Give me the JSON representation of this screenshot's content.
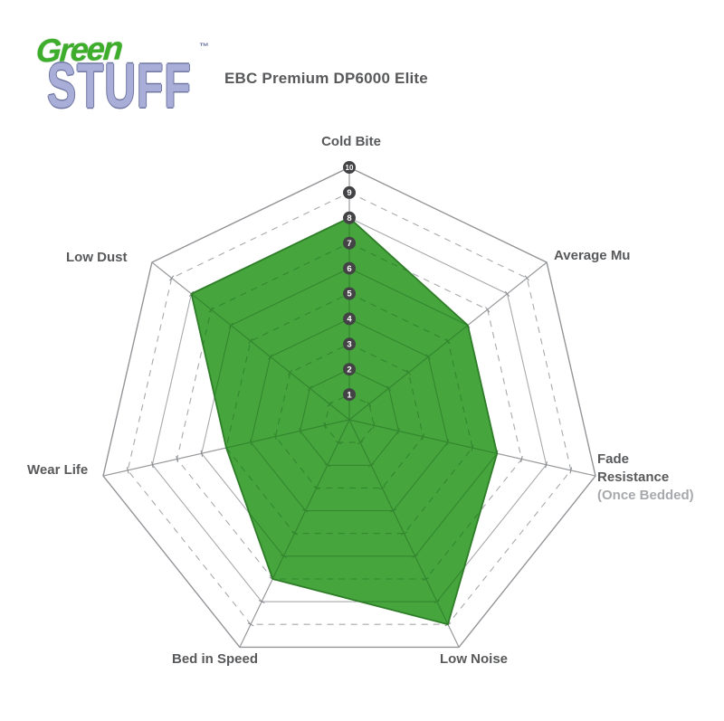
{
  "logo": {
    "word1": "Green",
    "word2": "STUFF",
    "trademark": "™",
    "word1_color": "#3dad2b",
    "word2_color": "#a9aed8",
    "word2_outline": "#7078a2"
  },
  "header": {
    "title": "EBC Premium DP6000 Elite",
    "color": "#58595b"
  },
  "chart_data": {
    "type": "radar",
    "title": "EBC Premium DP6000 Elite",
    "categories": [
      "Cold Bite",
      "Average Mu",
      "Fade Resistance (Once Bedded)",
      "Low Noise",
      "Bed in Speed",
      "Wear Life",
      "Low Dust"
    ],
    "series": [
      {
        "name": "EBC Premium DP6000 Elite",
        "values": [
          8,
          6,
          6,
          9,
          7,
          5,
          8
        ]
      }
    ],
    "axes": [
      {
        "label": "Cold Bite",
        "value": 8
      },
      {
        "label": "Average Mu",
        "value": 6
      },
      {
        "label": "Fade Resistance",
        "sublabel": "(Once Bedded)",
        "value": 6
      },
      {
        "label": "Low Noise",
        "value": 9
      },
      {
        "label": "Bed in Speed",
        "value": 7
      },
      {
        "label": "Wear Life",
        "value": 5
      },
      {
        "label": "Low Dust",
        "value": 8
      }
    ],
    "scale": {
      "min": 0,
      "max": 10,
      "tick_labels": [
        "1",
        "2",
        "3",
        "4",
        "5",
        "6",
        "7",
        "8",
        "9",
        "10"
      ]
    },
    "grid": {
      "rings": 10,
      "shape": "heptagon",
      "odd_rings_dashed": true,
      "legend_position": "none"
    },
    "colors": {
      "fill": "#46a53c",
      "fill_edge": "#2e7d28",
      "grid_outer": "#a7a9ac",
      "grid_inner": "#33872f",
      "spoke": "#97999c",
      "tick": "#88898c",
      "scale_marker_bg": "#434345",
      "scale_marker_text": "#ffffff",
      "label": "#58595b",
      "sublabel": "#a7a9ac"
    }
  }
}
